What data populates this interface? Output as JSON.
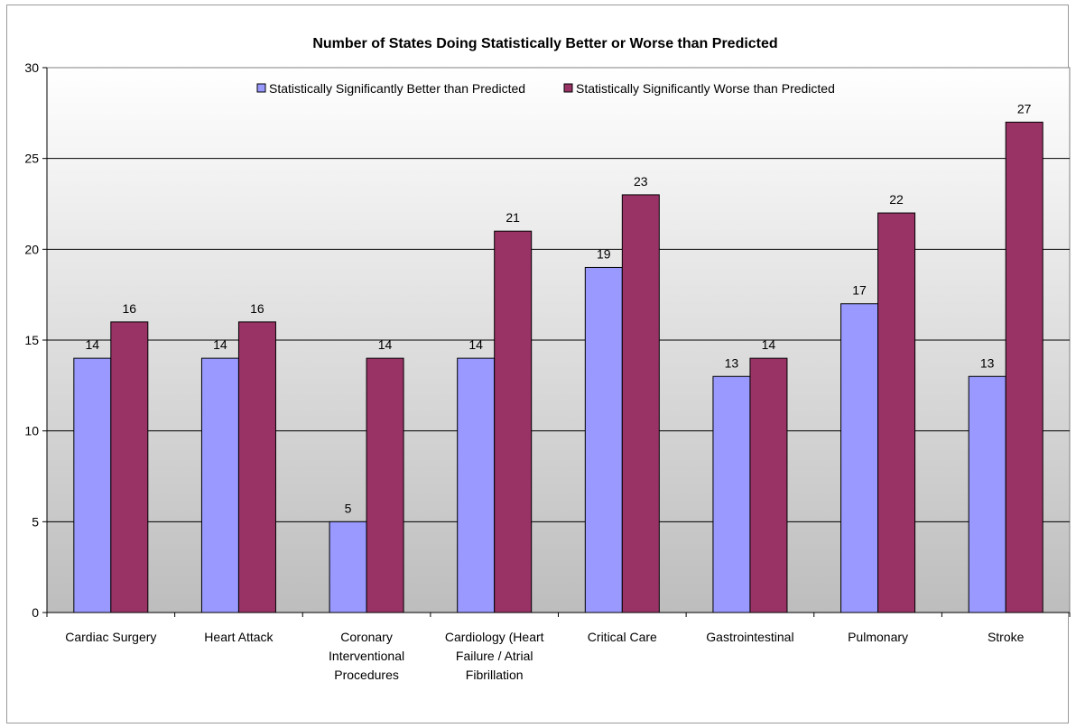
{
  "chart_data": {
    "type": "bar",
    "title": "Number of States Doing Statistically Better or Worse than Predicted",
    "xlabel": "",
    "ylabel": "",
    "ylim": [
      0,
      30
    ],
    "yticks": [
      0,
      5,
      10,
      15,
      20,
      25,
      30
    ],
    "grid": true,
    "legend_position": "top",
    "categories": [
      "Cardiac Surgery",
      "Heart Attack",
      "Coronary Interventional Procedures",
      "Cardiology (Heart Failure / Atrial Fibrillation",
      "Critical Care",
      "Gastrointestinal",
      "Pulmonary",
      "Stroke"
    ],
    "category_lines": [
      [
        "Cardiac Surgery"
      ],
      [
        "Heart Attack"
      ],
      [
        "Coronary",
        "Interventional",
        "Procedures"
      ],
      [
        "Cardiology (Heart",
        "Failure / Atrial",
        "Fibrillation"
      ],
      [
        "Critical Care"
      ],
      [
        "Gastrointestinal"
      ],
      [
        "Pulmonary"
      ],
      [
        "Stroke"
      ]
    ],
    "series": [
      {
        "name": "Statistically Significantly Better than Predicted",
        "color": "#9999ff",
        "values": [
          14,
          14,
          5,
          14,
          19,
          13,
          17,
          13
        ]
      },
      {
        "name": "Statistically Significantly Worse than Predicted",
        "color": "#993366",
        "values": [
          16,
          16,
          14,
          21,
          23,
          14,
          22,
          27
        ]
      }
    ]
  }
}
